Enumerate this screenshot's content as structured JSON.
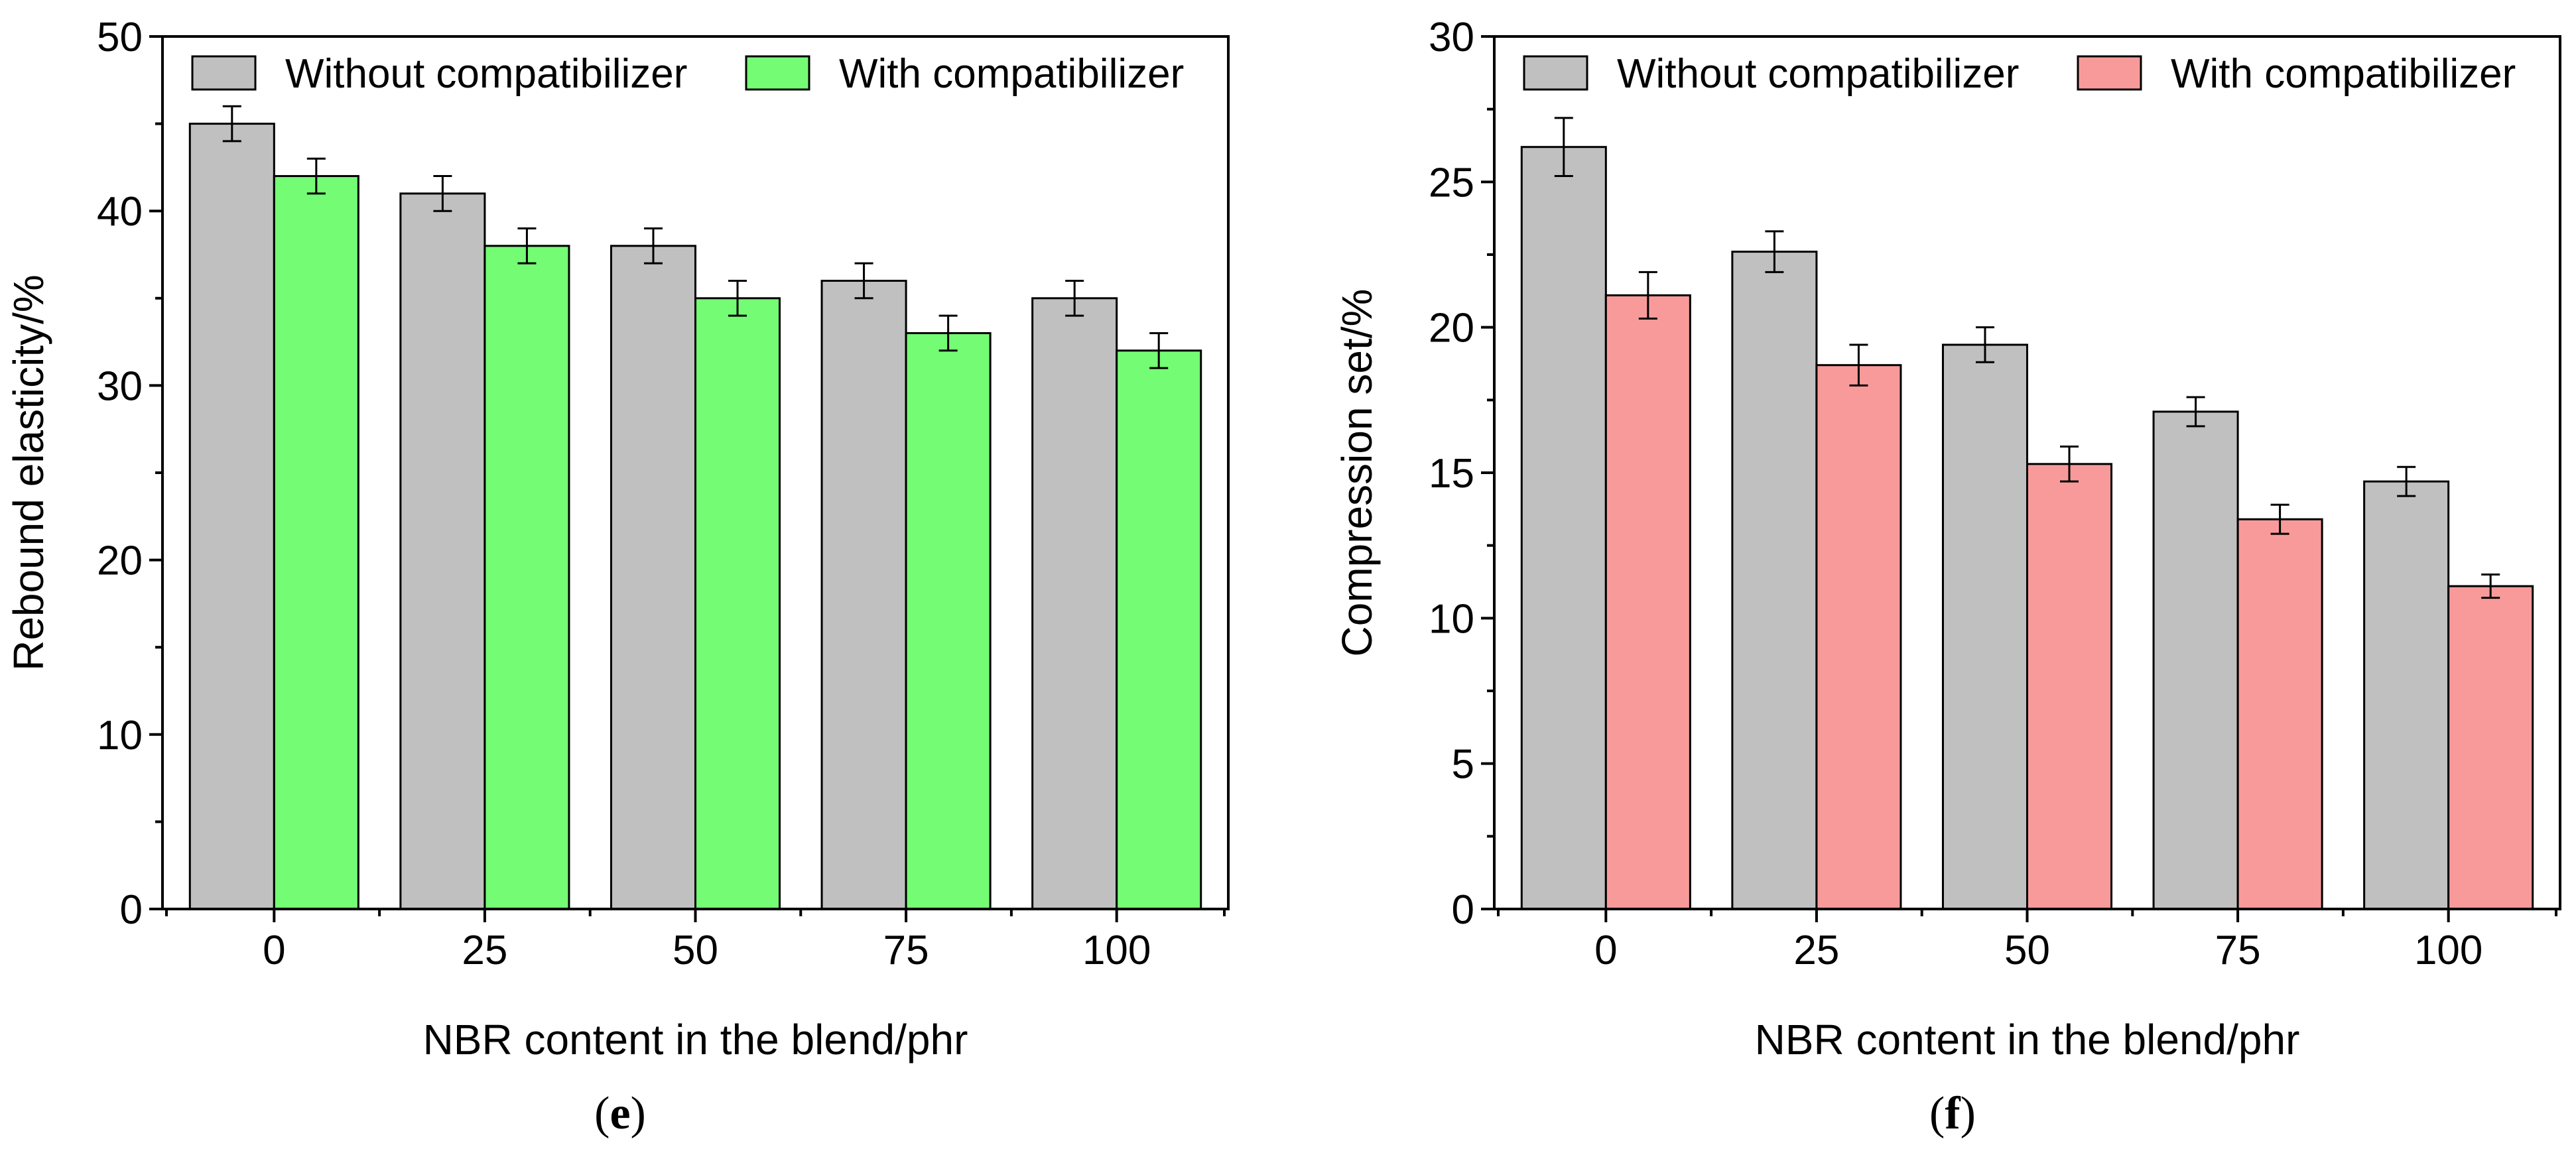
{
  "chart_data": [
    {
      "id": "e",
      "type": "bar",
      "caption": "(e)",
      "caption_letter": "e",
      "xlabel": "NBR content in the blend/phr",
      "ylabel": "Rebound elasticity/%",
      "categories": [
        "0",
        "25",
        "50",
        "75",
        "100"
      ],
      "ylim": [
        0,
        50
      ],
      "yticks": [
        0,
        10,
        20,
        30,
        40,
        50
      ],
      "y_minor_step": 5,
      "legend_position": "top",
      "series": [
        {
          "name": "Without compatibilizer",
          "color": "#c0c0c0",
          "values": [
            45,
            41,
            38,
            36,
            35
          ],
          "errors": [
            1,
            1,
            1,
            1,
            1
          ]
        },
        {
          "name": "With compatibilizer",
          "color": "#74fc74",
          "values": [
            42,
            38,
            35,
            33,
            32
          ],
          "errors": [
            1,
            1,
            1,
            1,
            1
          ]
        }
      ]
    },
    {
      "id": "f",
      "type": "bar",
      "caption": "(f)",
      "caption_letter": "f",
      "xlabel": "NBR content in the blend/phr",
      "ylabel": "Compression set/%",
      "categories": [
        "0",
        "25",
        "50",
        "75",
        "100"
      ],
      "ylim": [
        0,
        30
      ],
      "yticks": [
        0,
        5,
        10,
        15,
        20,
        25,
        30
      ],
      "y_minor_step": 2.5,
      "legend_position": "top",
      "series": [
        {
          "name": "Without compatibilizer",
          "color": "#c0c0c0",
          "values": [
            26.2,
            22.6,
            19.4,
            17.1,
            14.7
          ],
          "errors": [
            1.0,
            0.7,
            0.6,
            0.5,
            0.5
          ]
        },
        {
          "name": "With compatibilizer",
          "color": "#f99a9a",
          "values": [
            21.1,
            18.7,
            15.3,
            13.4,
            11.1
          ],
          "errors": [
            0.8,
            0.7,
            0.6,
            0.5,
            0.4
          ]
        }
      ]
    }
  ]
}
